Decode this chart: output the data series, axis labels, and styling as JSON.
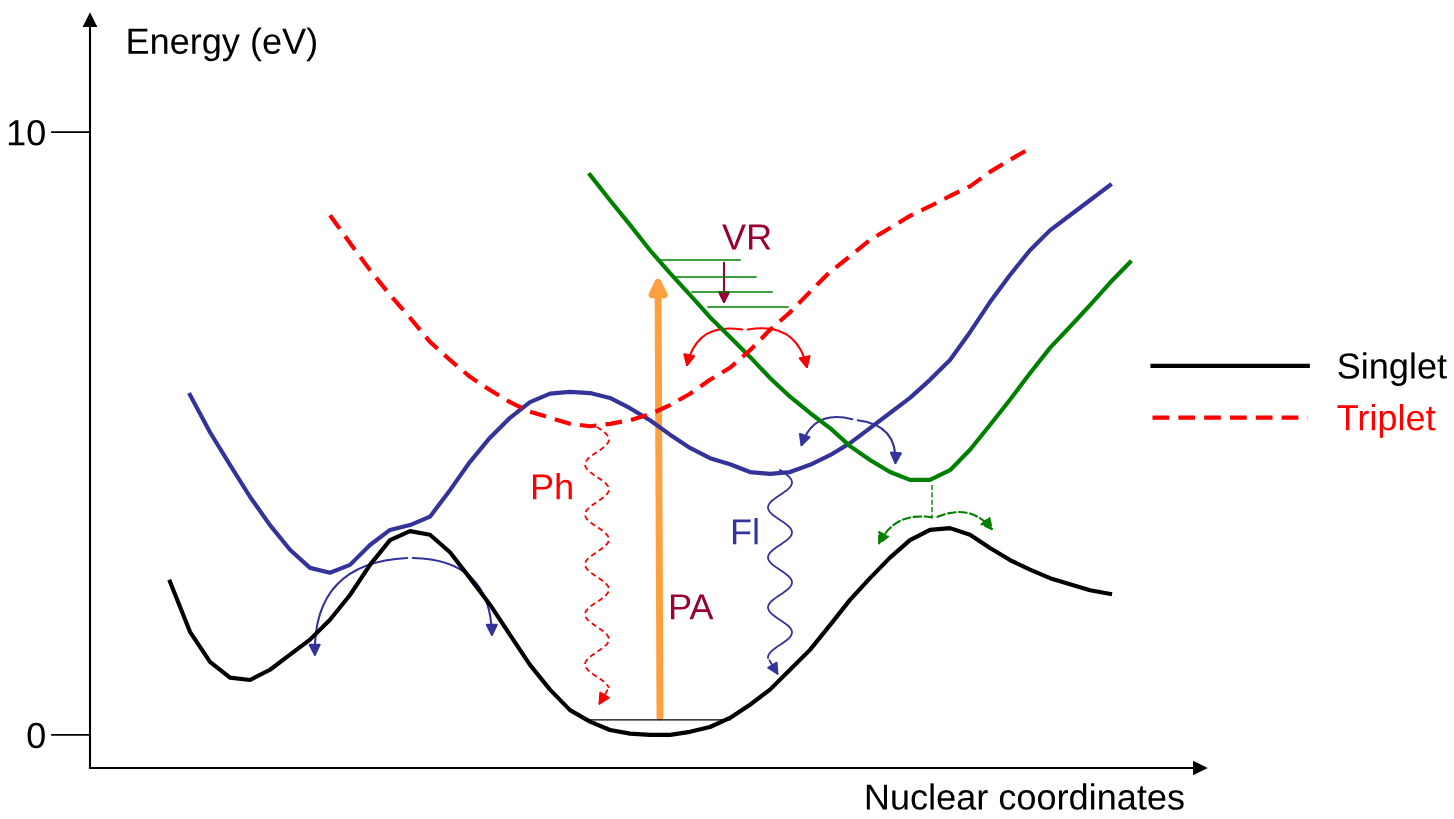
{
  "chart_data": {
    "type": "line",
    "xlabel": "Nuclear coordinates",
    "ylabel": "Energy (eV)",
    "categories": [
      null,
      null,
      null,
      null,
      null,
      null,
      null,
      null,
      null,
      null,
      null,
      null,
      null,
      null,
      null,
      null,
      null,
      null,
      null,
      null,
      null,
      null,
      null,
      null,
      null,
      null,
      null,
      null,
      null,
      null,
      null,
      null,
      null,
      null,
      null,
      null,
      null,
      null,
      null,
      null,
      null,
      null,
      null,
      null,
      null,
      null,
      null,
      null,
      null
    ],
    "ylim": [
      -0.55,
      11.86
    ],
    "yticks": [
      0,
      10
    ],
    "legend": "right",
    "grid": false,
    "marker": "none",
    "series": [
      {
        "name": "Singlet",
        "color": "#000000",
        "line_style": "solid",
        "values": [
          2.54,
          1.71,
          1.21,
          0.95,
          0.91,
          1.08,
          1.33,
          1.58,
          1.91,
          2.32,
          2.82,
          3.23,
          3.38,
          3.32,
          3.03,
          2.6,
          2.16,
          1.66,
          1.16,
          0.75,
          0.41,
          0.22,
          0.08,
          0.02,
          0,
          0,
          0.05,
          0.13,
          0.28,
          0.5,
          0.75,
          1.08,
          1.41,
          1.82,
          2.24,
          2.6,
          2.94,
          3.23,
          3.4,
          3.43,
          3.32,
          3.1,
          2.9,
          2.74,
          2.6,
          2.5,
          2.4,
          2.34,
          null
        ]
      },
      {
        "color": "#333399",
        "line_style": "solid",
        "values": [
          null,
          5.64,
          5.02,
          4.48,
          3.95,
          3.48,
          3.07,
          2.77,
          2.69,
          2.82,
          3.15,
          3.4,
          3.48,
          3.62,
          4.06,
          4.53,
          4.93,
          5.26,
          5.52,
          5.66,
          5.69,
          5.67,
          5.59,
          5.42,
          5.22,
          4.98,
          4.76,
          4.59,
          4.49,
          4.36,
          4.33,
          4.36,
          4.48,
          4.64,
          4.84,
          5.09,
          5.34,
          5.59,
          5.89,
          6.22,
          6.68,
          7.18,
          7.63,
          8.04,
          8.37,
          8.62,
          8.87,
          9.12,
          null
        ]
      },
      {
        "color": "#008000",
        "line_style": "solid",
        "values": [
          null,
          null,
          null,
          null,
          null,
          null,
          null,
          null,
          null,
          null,
          null,
          null,
          null,
          null,
          null,
          null,
          null,
          null,
          null,
          null,
          null,
          9.29,
          8.87,
          8.46,
          8.04,
          7.66,
          7.3,
          6.93,
          6.6,
          6.27,
          5.92,
          5.61,
          5.34,
          5.09,
          4.79,
          4.56,
          4.36,
          4.23,
          4.23,
          4.39,
          4.73,
          5.14,
          5.56,
          6.0,
          6.42,
          6.77,
          7.13,
          7.5,
          7.84
        ]
      },
      {
        "name": "Triplet",
        "color": "#ff0000",
        "line_style": "dashed",
        "values": [
          null,
          null,
          null,
          null,
          null,
          null,
          null,
          null,
          8.62,
          8.16,
          7.71,
          7.3,
          6.92,
          6.52,
          6.22,
          5.94,
          5.72,
          5.52,
          5.36,
          5.26,
          5.16,
          5.12,
          5.16,
          5.22,
          5.32,
          5.47,
          5.66,
          5.89,
          6.09,
          6.38,
          6.72,
          7.01,
          7.35,
          7.68,
          7.94,
          8.21,
          8.41,
          8.61,
          8.77,
          8.94,
          9.1,
          9.34,
          9.54,
          9.73,
          null,
          null,
          null,
          null,
          null
        ]
      }
    ],
    "annotations": [
      "VR",
      "Ph",
      "Fl",
      "PA"
    ]
  }
}
